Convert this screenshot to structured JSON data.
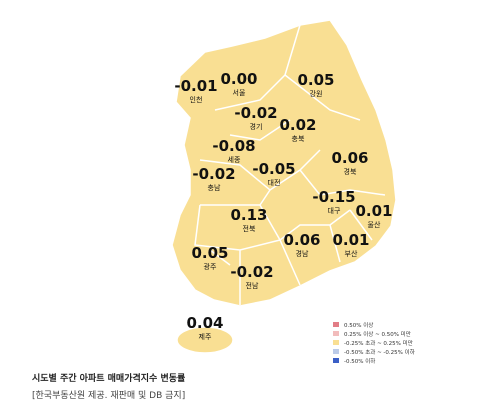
{
  "regions": [
    {
      "name": "인천",
      "value": "-0.01"
    },
    {
      "name": "서울",
      "value": "0.00"
    },
    {
      "name": "강원",
      "value": "0.05"
    },
    {
      "name": "경기",
      "value": "-0.02"
    },
    {
      "name": "충북",
      "value": "0.02"
    },
    {
      "name": "세종",
      "value": "-0.08"
    },
    {
      "name": "충남",
      "value": "-0.02"
    },
    {
      "name": "대전",
      "value": "-0.05"
    },
    {
      "name": "경북",
      "value": "0.06"
    },
    {
      "name": "대구",
      "value": "-0.15"
    },
    {
      "name": "울산",
      "value": "0.01"
    },
    {
      "name": "전북",
      "value": "0.13"
    },
    {
      "name": "경남",
      "value": "0.06"
    },
    {
      "name": "부산",
      "value": "0.01"
    },
    {
      "name": "광주",
      "value": "0.05"
    },
    {
      "name": "전남",
      "value": "-0.02"
    },
    {
      "name": "제주",
      "value": "0.04"
    }
  ],
  "legend": [
    {
      "label": "0.50% 이상",
      "color": "#e27d86"
    },
    {
      "label": "0.25% 이상 ~ 0.50% 미만",
      "color": "#f2bcbc"
    },
    {
      "label": "-0.25% 초과 ~ 0.25% 미만",
      "color": "#f9df93"
    },
    {
      "label": "-0.50% 초과 ~ -0.25% 이하",
      "color": "#bccbe8"
    },
    {
      "label": "-0.50% 이하",
      "color": "#3b5fc6"
    }
  ],
  "caption": {
    "title": "시도별 주간 아파트 매매가격지수 변동률",
    "source": "[한국부동산원 제공. 재판매 및 DB 금지]"
  }
}
